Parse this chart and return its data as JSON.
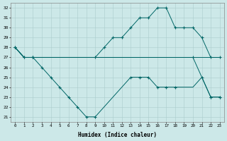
{
  "xlabel": "Humidex (Indice chaleur)",
  "x_ticks": [
    0,
    1,
    2,
    3,
    4,
    5,
    6,
    7,
    8,
    9,
    10,
    11,
    12,
    13,
    14,
    15,
    16,
    17,
    18,
    19,
    20,
    21,
    22,
    23
  ],
  "ylim": [
    21,
    32
  ],
  "xlim": [
    -0.5,
    23.5
  ],
  "y_ticks": [
    21,
    22,
    23,
    24,
    25,
    26,
    27,
    28,
    29,
    30,
    31,
    32
  ],
  "bg_color": "#cce8e8",
  "grid_color": "#aacccc",
  "line_color": "#006666",
  "series1_x": [
    0,
    1,
    2,
    3,
    4,
    5,
    6,
    7,
    8,
    9,
    10,
    11,
    12,
    13,
    14,
    15,
    16,
    17,
    18,
    19,
    20,
    21,
    22,
    23
  ],
  "series1_y": [
    28,
    27,
    27,
    27,
    27,
    27,
    27,
    27,
    27,
    27,
    27,
    27,
    27,
    27,
    27,
    27,
    27,
    27,
    27,
    27,
    27,
    27,
    27,
    27
  ],
  "series2_x": [
    0,
    1,
    2,
    9,
    10,
    11,
    12,
    13,
    14,
    15,
    16,
    17,
    18,
    19,
    20,
    21,
    22,
    23
  ],
  "series2_y": [
    28,
    27,
    27,
    27,
    28,
    29,
    29,
    30,
    31,
    31,
    32,
    32,
    30,
    30,
    30,
    29,
    27,
    27
  ],
  "series3_x": [
    0,
    1,
    2,
    3,
    4,
    5,
    6,
    7,
    8,
    9,
    10,
    11,
    12,
    13,
    14,
    15,
    16,
    17,
    18,
    19,
    20,
    21,
    22,
    23
  ],
  "series3_y": [
    28,
    27,
    27,
    26,
    25,
    24,
    23,
    22,
    21,
    21,
    22,
    23,
    24,
    25,
    25,
    25,
    24,
    24,
    24,
    24,
    24,
    25,
    23,
    23
  ],
  "series4_x": [
    0,
    1,
    2,
    3,
    4,
    5,
    6,
    7,
    8,
    9,
    10,
    11,
    12,
    13,
    14,
    15,
    16,
    17,
    18,
    19,
    20,
    21,
    22,
    23
  ],
  "series4_y": [
    28,
    27,
    27,
    27,
    27,
    27,
    27,
    27,
    27,
    27,
    27,
    27,
    27,
    27,
    27,
    27,
    27,
    27,
    27,
    27,
    27,
    25,
    23,
    23
  ],
  "mk2_x": [
    0,
    1,
    2,
    9,
    10,
    11,
    12,
    13,
    14,
    15,
    16,
    17,
    18,
    19,
    20,
    21,
    22,
    23
  ],
  "mk2_y": [
    28,
    27,
    27,
    27,
    28,
    29,
    29,
    30,
    31,
    31,
    32,
    32,
    30,
    30,
    30,
    29,
    27,
    27
  ],
  "mk3_x": [
    0,
    2,
    3,
    4,
    5,
    6,
    7,
    8,
    9,
    13,
    14,
    15,
    16,
    17,
    18,
    22,
    23
  ],
  "mk3_y": [
    28,
    27,
    26,
    25,
    24,
    23,
    22,
    21,
    21,
    25,
    25,
    25,
    24,
    24,
    24,
    23,
    23
  ],
  "mk4_x": [
    0,
    1,
    2,
    20,
    21,
    22,
    23
  ],
  "mk4_y": [
    28,
    27,
    27,
    27,
    25,
    23,
    23
  ]
}
